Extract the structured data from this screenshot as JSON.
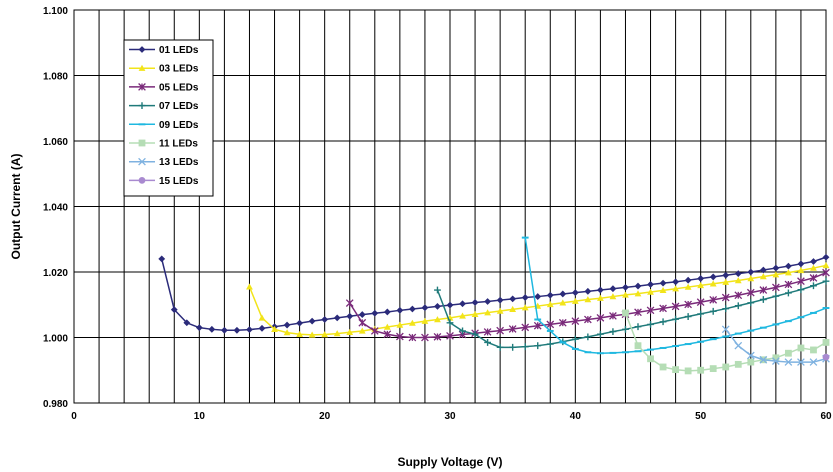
{
  "chart_data": {
    "type": "line",
    "xlabel": "Supply Voltage (V)",
    "ylabel": "Output Current (A)",
    "xlim": [
      0,
      60
    ],
    "ylim": [
      0.98,
      1.1
    ],
    "x_ticks": [
      "0",
      "10",
      "20",
      "30",
      "40",
      "50",
      "60"
    ],
    "y_ticks": [
      "0.980",
      "1.000",
      "1.020",
      "1.040",
      "1.060",
      "1.080",
      "1.100"
    ],
    "grid": true,
    "legend_position": "top-left",
    "series": [
      {
        "name": "01 LEDs",
        "color": "#2b2b7a",
        "marker": "diamond",
        "x": [
          7,
          8,
          9,
          10,
          11,
          12,
          13,
          14,
          15,
          16,
          17,
          18,
          19,
          20,
          21,
          22,
          23,
          24,
          25,
          26,
          27,
          28,
          29,
          30,
          31,
          32,
          33,
          34,
          35,
          36,
          37,
          38,
          39,
          40,
          41,
          42,
          43,
          44,
          45,
          46,
          47,
          48,
          49,
          50,
          51,
          52,
          53,
          54,
          55,
          56,
          57,
          58,
          59,
          60
        ],
        "y": [
          1.024,
          1.0085,
          1.0045,
          1.003,
          1.0025,
          1.0022,
          1.0022,
          1.0024,
          1.0028,
          1.0033,
          1.0038,
          1.0044,
          1.005,
          1.0055,
          1.006,
          1.0065,
          1.007,
          1.0074,
          1.0078,
          1.0083,
          1.0087,
          1.0091,
          1.0095,
          1.0099,
          1.0103,
          1.0107,
          1.011,
          1.0114,
          1.0118,
          1.0122,
          1.0125,
          1.0129,
          1.0133,
          1.0137,
          1.0141,
          1.0145,
          1.0149,
          1.0153,
          1.0157,
          1.0162,
          1.0166,
          1.017,
          1.0175,
          1.018,
          1.0185,
          1.019,
          1.0195,
          1.02,
          1.0206,
          1.0212,
          1.0218,
          1.0225,
          1.0232,
          1.0245
        ]
      },
      {
        "name": "03 LEDs",
        "color": "#f2e41a",
        "marker": "triangle",
        "x": [
          14,
          15,
          16,
          17,
          18,
          19,
          20,
          21,
          22,
          23,
          24,
          25,
          26,
          27,
          28,
          29,
          30,
          31,
          32,
          33,
          34,
          35,
          36,
          37,
          38,
          39,
          40,
          41,
          42,
          43,
          44,
          45,
          46,
          47,
          48,
          49,
          50,
          51,
          52,
          53,
          54,
          55,
          56,
          57,
          58,
          59,
          60
        ],
        "y": [
          1.0155,
          1.006,
          1.0025,
          1.0015,
          1.001,
          1.0008,
          1.0009,
          1.0012,
          1.0016,
          1.002,
          1.0026,
          1.0032,
          1.0038,
          1.0044,
          1.005,
          1.0055,
          1.006,
          1.0066,
          1.0071,
          1.0076,
          1.0081,
          1.0086,
          1.0091,
          1.0096,
          1.0101,
          1.0106,
          1.0111,
          1.0116,
          1.012,
          1.0125,
          1.013,
          1.0134,
          1.0139,
          1.0144,
          1.0149,
          1.0154,
          1.0159,
          1.0164,
          1.0169,
          1.0174,
          1.018,
          1.0186,
          1.0192,
          1.0198,
          1.0205,
          1.0212,
          1.022
        ]
      },
      {
        "name": "05 LEDs",
        "color": "#7a2a7a",
        "marker": "star",
        "x": [
          22,
          23,
          24,
          25,
          26,
          27,
          28,
          29,
          30,
          31,
          32,
          33,
          34,
          35,
          36,
          37,
          38,
          39,
          40,
          41,
          42,
          43,
          44,
          45,
          46,
          47,
          48,
          49,
          50,
          51,
          52,
          53,
          54,
          55,
          56,
          57,
          58,
          59,
          60
        ],
        "y": [
          1.0105,
          1.0045,
          1.002,
          1.001,
          1.0003,
          1.0,
          1.0,
          1.0002,
          1.0005,
          1.0009,
          1.0013,
          1.0017,
          1.0021,
          1.0026,
          1.0031,
          1.0036,
          1.004,
          1.0045,
          1.005,
          1.0055,
          1.006,
          1.0066,
          1.0071,
          1.0077,
          1.0083,
          1.0089,
          1.0095,
          1.0101,
          1.0108,
          1.0115,
          1.0122,
          1.0129,
          1.0137,
          1.0145,
          1.0153,
          1.0162,
          1.0172,
          1.0182,
          1.0198
        ]
      },
      {
        "name": "07 LEDs",
        "color": "#1f7a7a",
        "marker": "plus",
        "x": [
          29,
          30,
          31,
          32,
          33,
          34,
          35,
          36,
          37,
          38,
          39,
          40,
          41,
          42,
          43,
          44,
          45,
          46,
          47,
          48,
          49,
          50,
          51,
          52,
          53,
          54,
          55,
          56,
          57,
          58,
          59,
          60
        ],
        "y": [
          1.0145,
          1.0045,
          1.002,
          1.001,
          0.9985,
          0.997,
          0.997,
          0.9972,
          0.9975,
          0.998,
          0.9987,
          0.9995,
          1.0002,
          1.001,
          1.0018,
          1.0025,
          1.0033,
          1.004,
          1.0048,
          1.0056,
          1.0064,
          1.0072,
          1.008,
          1.0088,
          1.0097,
          1.0106,
          1.0116,
          1.0126,
          1.0136,
          1.0146,
          1.0158,
          1.0172
        ]
      },
      {
        "name": "09 LEDs",
        "color": "#1fb8e0",
        "marker": "dash",
        "x": [
          36,
          37,
          38,
          39,
          40,
          41,
          42,
          43,
          44,
          45,
          46,
          47,
          48,
          49,
          50,
          51,
          52,
          53,
          54,
          55,
          56,
          57,
          58,
          59,
          60
        ],
        "y": [
          1.0305,
          1.0055,
          1.002,
          0.9985,
          0.9965,
          0.9955,
          0.9952,
          0.9953,
          0.9955,
          0.9958,
          0.9963,
          0.9968,
          0.9974,
          0.998,
          0.9987,
          0.9995,
          1.0003,
          1.0012,
          1.0021,
          1.003,
          1.004,
          1.005,
          1.0062,
          1.0075,
          1.009
        ]
      },
      {
        "name": "11 LEDs",
        "color": "#b5ddb5",
        "marker": "square",
        "x": [
          44,
          45,
          46,
          47,
          48,
          49,
          50,
          51,
          52,
          53,
          54,
          55,
          56,
          57,
          58,
          59,
          60
        ],
        "y": [
          1.0075,
          0.9975,
          0.9935,
          0.991,
          0.9902,
          0.9898,
          0.99,
          0.9905,
          0.991,
          0.9918,
          0.9925,
          0.9932,
          0.9938,
          0.9952,
          0.9968,
          0.9962,
          0.9985
        ]
      },
      {
        "name": "13 LEDs",
        "color": "#7fb2e0",
        "marker": "x",
        "x": [
          52,
          53,
          54,
          55,
          56,
          57,
          58,
          59,
          60
        ],
        "y": [
          1.0025,
          0.9975,
          0.9945,
          0.9932,
          0.9928,
          0.9925,
          0.9925,
          0.9925,
          0.9935
        ]
      },
      {
        "name": "15 LEDs",
        "color": "#a98ad0",
        "marker": "circle",
        "x": [
          60
        ],
        "y": [
          0.994
        ]
      }
    ]
  }
}
